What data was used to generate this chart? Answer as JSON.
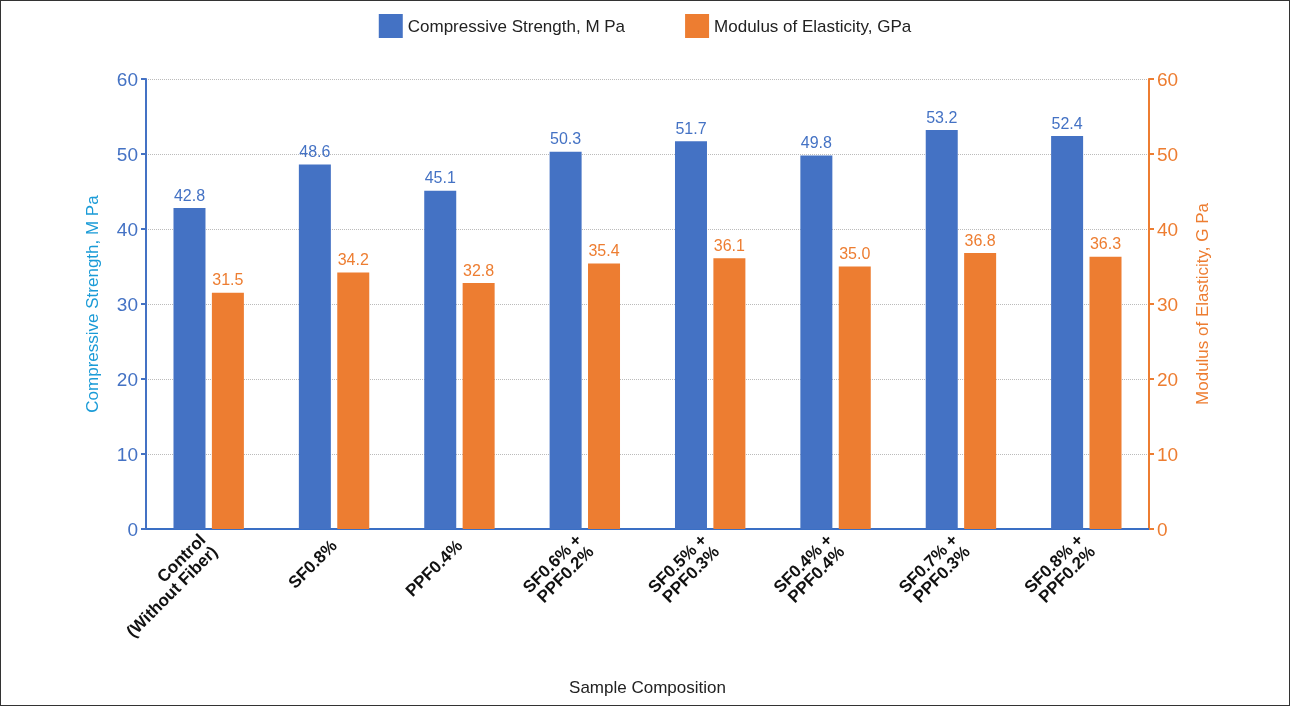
{
  "chart_data": {
    "type": "bar",
    "categories": [
      "Control\n(Without Fiber)",
      "SF0.8%",
      "PPF0.4%",
      "SF0.6% +\nPPF0.2%",
      "SF0.5% +\nPPF0.3%",
      "SF0.4% +\nPPF0.4%",
      "SF0.7% +\nPPF0.3%",
      "SF0.8% +\nPPF0.2%"
    ],
    "series": [
      {
        "name": "Compressive Strength, M Pa",
        "color": "#4472c4",
        "values": [
          42.8,
          48.6,
          45.1,
          50.3,
          51.7,
          49.8,
          53.2,
          52.4
        ],
        "value_labels": [
          "42.8",
          "48.6",
          "45.1",
          "50.3",
          "51.7",
          "49.8",
          "53.2",
          "52.4"
        ]
      },
      {
        "name": "Modulus of Elasticity, GPa",
        "color": "#ed7d31",
        "axis": "y2",
        "values": [
          31.5,
          34.2,
          32.8,
          35.4,
          36.1,
          35.0,
          36.8,
          36.3
        ],
        "value_labels": [
          "31.5",
          "34.2",
          "32.8",
          "35.4",
          "36.1",
          "35.0",
          "36.8",
          "36.3"
        ]
      }
    ],
    "xlabel": "Sample Composition",
    "ylabel": "Compressive Strength, M Pa",
    "y2label": "Modulus of Elasticity, G Pa",
    "ylim": [
      0,
      60
    ],
    "yticks": [
      0,
      10,
      20,
      30,
      40,
      50,
      60
    ],
    "y2lim": [
      0,
      60
    ],
    "y2ticks": [
      0,
      10,
      20,
      30,
      40,
      50,
      60
    ],
    "grid": "y",
    "legend": "top"
  }
}
